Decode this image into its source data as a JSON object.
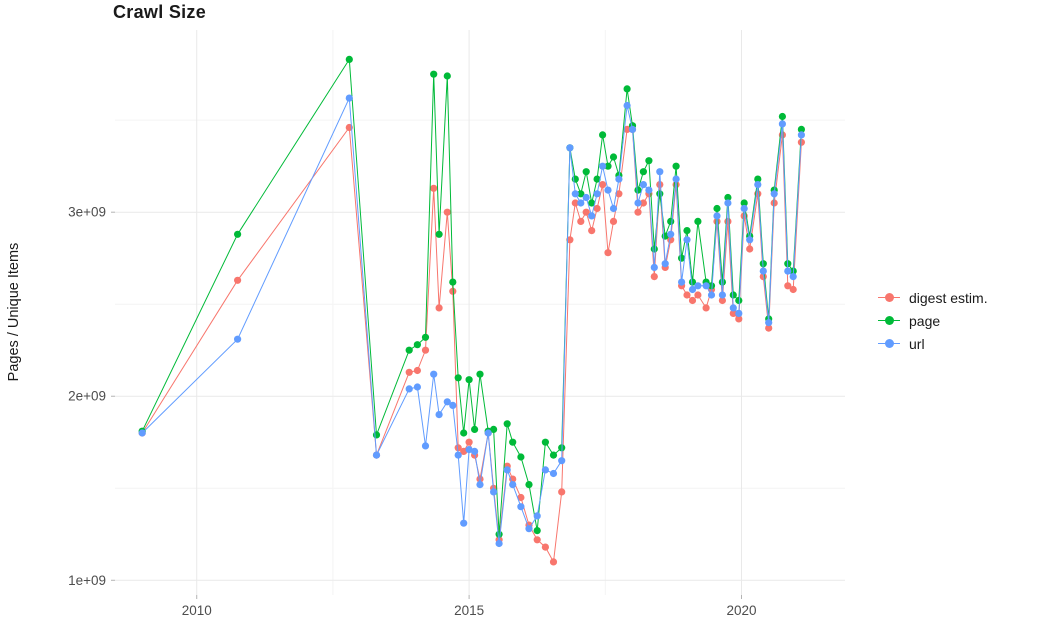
{
  "chart_data": {
    "type": "line",
    "title": "Crawl Size",
    "ylabel": "Pages / Unique Items",
    "xlabel": "",
    "legend_position": "right",
    "grid": true,
    "xlim": [
      2008.5,
      2021.9
    ],
    "ylim": [
      920000000.0,
      3990000000.0
    ],
    "yticks": [
      {
        "value": 1000000000.0,
        "label": "1e+09"
      },
      {
        "value": 2000000000.0,
        "label": "2e+09"
      },
      {
        "value": 3000000000.0,
        "label": "3e+09"
      }
    ],
    "xticks": [
      {
        "value": 2010,
        "label": "2010"
      },
      {
        "value": 2015,
        "label": "2015"
      },
      {
        "value": 2020,
        "label": "2020"
      }
    ],
    "minor_yticks": [
      1500000000.0,
      2500000000.0,
      3500000000.0
    ],
    "minor_xticks": [
      2012.5,
      2017.5
    ],
    "x": [
      2009.0,
      2010.75,
      2012.8,
      2013.3,
      2013.9,
      2014.05,
      2014.2,
      2014.35,
      2014.45,
      2014.6,
      2014.7,
      2014.8,
      2014.9,
      2015.0,
      2015.1,
      2015.2,
      2015.35,
      2015.45,
      2015.55,
      2015.7,
      2015.8,
      2015.95,
      2016.1,
      2016.25,
      2016.4,
      2016.55,
      2016.7,
      2016.85,
      2016.95,
      2017.05,
      2017.15,
      2017.25,
      2017.35,
      2017.45,
      2017.55,
      2017.65,
      2017.75,
      2017.9,
      2018.0,
      2018.1,
      2018.2,
      2018.3,
      2018.4,
      2018.5,
      2018.6,
      2018.7,
      2018.8,
      2018.9,
      2019.0,
      2019.1,
      2019.2,
      2019.35,
      2019.45,
      2019.55,
      2019.65,
      2019.75,
      2019.85,
      2019.95,
      2020.05,
      2020.15,
      2020.3,
      2020.4,
      2020.5,
      2020.6,
      2020.75,
      2020.85,
      2020.95,
      2021.1
    ],
    "series": [
      {
        "name": "digest estim.",
        "color": "#F8766D",
        "values": [
          1800000000.0,
          2630000000.0,
          3460000000.0,
          1680000000.0,
          2130000000.0,
          2140000000.0,
          2250000000.0,
          3130000000.0,
          2480000000.0,
          3000000000.0,
          2570000000.0,
          1720000000.0,
          1700000000.0,
          1750000000.0,
          1680000000.0,
          1550000000.0,
          1800000000.0,
          1500000000.0,
          1220000000.0,
          1620000000.0,
          1550000000.0,
          1450000000.0,
          1300000000.0,
          1220000000.0,
          1180000000.0,
          1100000000.0,
          1480000000.0,
          2850000000.0,
          3050000000.0,
          2950000000.0,
          3000000000.0,
          2900000000.0,
          3020000000.0,
          3150000000.0,
          2780000000.0,
          2950000000.0,
          3100000000.0,
          3450000000.0,
          3450000000.0,
          3000000000.0,
          3050000000.0,
          3100000000.0,
          2650000000.0,
          3150000000.0,
          2700000000.0,
          2850000000.0,
          3150000000.0,
          2600000000.0,
          2550000000.0,
          2520000000.0,
          2550000000.0,
          2480000000.0,
          2580000000.0,
          2950000000.0,
          2520000000.0,
          2950000000.0,
          2450000000.0,
          2420000000.0,
          2980000000.0,
          2800000000.0,
          3100000000.0,
          2650000000.0,
          2370000000.0,
          3050000000.0,
          3420000000.0,
          2600000000.0,
          2580000000.0,
          3380000000.0
        ]
      },
      {
        "name": "page",
        "color": "#00BA38",
        "values": [
          1810000000.0,
          2880000000.0,
          3830000000.0,
          1790000000.0,
          2250000000.0,
          2280000000.0,
          2320000000.0,
          3750000000.0,
          2880000000.0,
          3740000000.0,
          2620000000.0,
          2100000000.0,
          1800000000.0,
          2090000000.0,
          1820000000.0,
          2120000000.0,
          1810000000.0,
          1820000000.0,
          1250000000.0,
          1850000000.0,
          1750000000.0,
          1670000000.0,
          1520000000.0,
          1270000000.0,
          1750000000.0,
          1680000000.0,
          1720000000.0,
          3350000000.0,
          3180000000.0,
          3100000000.0,
          3220000000.0,
          3050000000.0,
          3180000000.0,
          3420000000.0,
          3250000000.0,
          3300000000.0,
          3200000000.0,
          3670000000.0,
          3470000000.0,
          3120000000.0,
          3220000000.0,
          3280000000.0,
          2800000000.0,
          3100000000.0,
          2870000000.0,
          2950000000.0,
          3250000000.0,
          2750000000.0,
          2900000000.0,
          2620000000.0,
          2950000000.0,
          2620000000.0,
          2600000000.0,
          3020000000.0,
          2620000000.0,
          3080000000.0,
          2550000000.0,
          2520000000.0,
          3050000000.0,
          2870000000.0,
          3180000000.0,
          2720000000.0,
          2420000000.0,
          3120000000.0,
          3520000000.0,
          2720000000.0,
          2680000000.0,
          3450000000.0
        ]
      },
      {
        "name": "url",
        "color": "#619CFF",
        "values": [
          1800000000.0,
          2310000000.0,
          3620000000.0,
          1680000000.0,
          2040000000.0,
          2050000000.0,
          1730000000.0,
          2120000000.0,
          1900000000.0,
          1970000000.0,
          1950000000.0,
          1680000000.0,
          1310000000.0,
          1710000000.0,
          1700000000.0,
          1520000000.0,
          1800000000.0,
          1480000000.0,
          1200000000.0,
          1600000000.0,
          1520000000.0,
          1400000000.0,
          1280000000.0,
          1350000000.0,
          1600000000.0,
          1580000000.0,
          1650000000.0,
          3350000000.0,
          3100000000.0,
          3050000000.0,
          3080000000.0,
          2980000000.0,
          3100000000.0,
          3250000000.0,
          3120000000.0,
          3020000000.0,
          3180000000.0,
          3580000000.0,
          3450000000.0,
          3050000000.0,
          3150000000.0,
          3120000000.0,
          2700000000.0,
          3220000000.0,
          2720000000.0,
          2880000000.0,
          3180000000.0,
          2620000000.0,
          2850000000.0,
          2580000000.0,
          2600000000.0,
          2600000000.0,
          2550000000.0,
          2980000000.0,
          2550000000.0,
          3050000000.0,
          2480000000.0,
          2450000000.0,
          3020000000.0,
          2850000000.0,
          3150000000.0,
          2680000000.0,
          2400000000.0,
          3100000000.0,
          3480000000.0,
          2680000000.0,
          2650000000.0,
          3420000000.0
        ]
      }
    ]
  }
}
